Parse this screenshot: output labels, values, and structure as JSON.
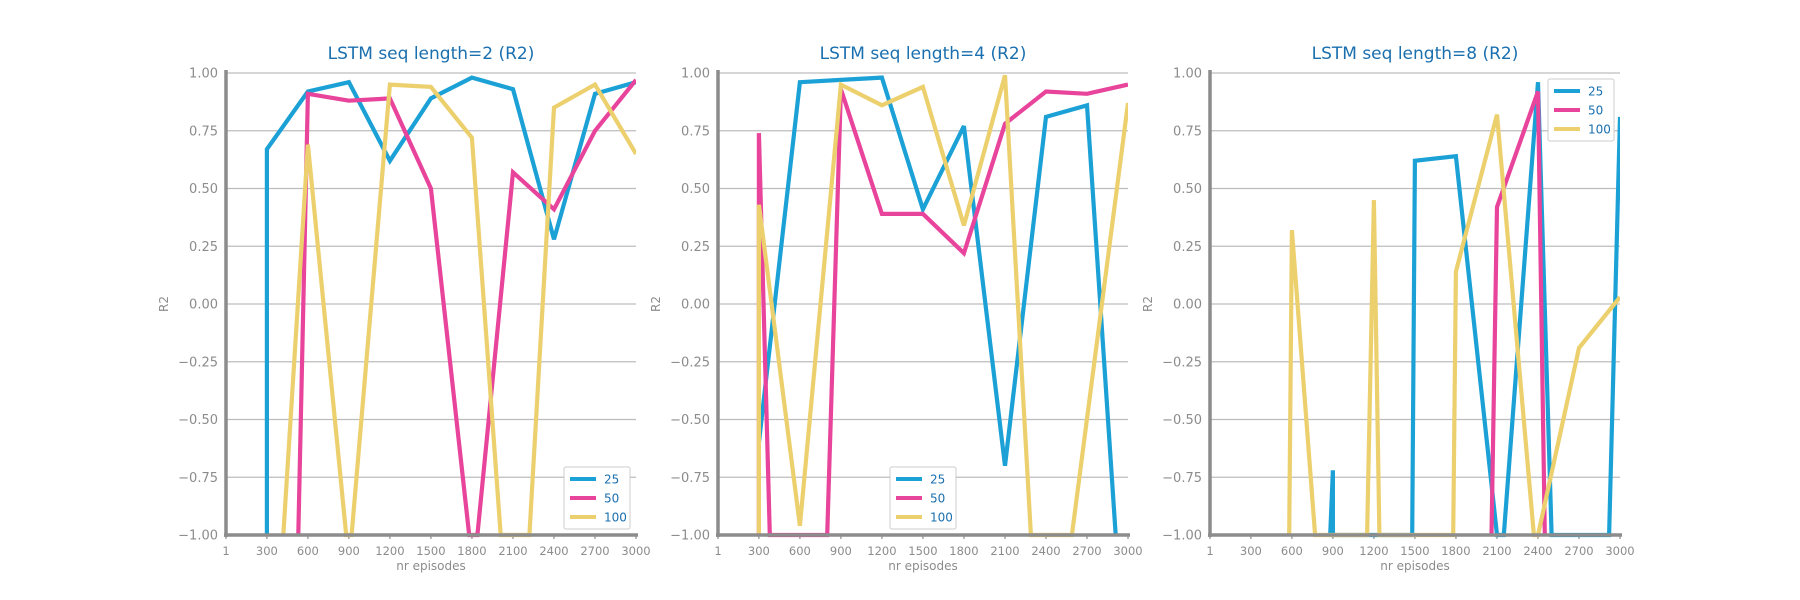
{
  "chart_data": [
    {
      "type": "line",
      "title": "LSTM seq length=2 (R2)",
      "xlabel": "nr episodes",
      "ylabel": "R2",
      "xlim": [
        1,
        3000
      ],
      "ylim": [
        -1,
        1
      ],
      "x_ticks": [
        "1",
        "300",
        "600",
        "900",
        "1200",
        "1500",
        "1800",
        "2100",
        "2400",
        "2700",
        "3000"
      ],
      "y_ticks": [
        "1.00",
        "0.75",
        "0.50",
        "0.25",
        "0.00",
        "−0.25",
        "−0.50",
        "−0.75",
        "−1.00"
      ],
      "legend_position": "bottom-right",
      "grid": true,
      "series": [
        {
          "name": "25",
          "color": "#1ba1d6",
          "points": [
            [
              300,
              -1.0
            ],
            [
              300,
              0.67
            ],
            [
              600,
              0.92
            ],
            [
              900,
              0.96
            ],
            [
              1200,
              0.62
            ],
            [
              1500,
              0.89
            ],
            [
              1800,
              0.98
            ],
            [
              2100,
              0.93
            ],
            [
              2400,
              0.28
            ],
            [
              2700,
              0.91
            ],
            [
              3000,
              0.96
            ]
          ]
        },
        {
          "name": "50",
          "color": "#e8449b",
          "points": [
            [
              530,
              -1.0
            ],
            [
              600,
              0.91
            ],
            [
              900,
              0.88
            ],
            [
              1200,
              0.89
            ],
            [
              1500,
              0.5
            ],
            [
              1780,
              -1.0
            ],
            [
              1840,
              -1.0
            ],
            [
              2100,
              0.57
            ],
            [
              2400,
              0.41
            ],
            [
              2700,
              0.75
            ],
            [
              3000,
              0.97
            ]
          ]
        },
        {
          "name": "100",
          "color": "#ecd06e",
          "points": [
            [
              420,
              -1.0
            ],
            [
              600,
              0.69
            ],
            [
              880,
              -1.0
            ],
            [
              920,
              -1.0
            ],
            [
              1200,
              0.95
            ],
            [
              1500,
              0.94
            ],
            [
              1800,
              0.72
            ],
            [
              2010,
              -1.0
            ],
            [
              2220,
              -1.0
            ],
            [
              2400,
              0.85
            ],
            [
              2700,
              0.95
            ],
            [
              3000,
              0.65
            ]
          ]
        }
      ]
    },
    {
      "type": "line",
      "title": "LSTM seq length=4 (R2)",
      "xlabel": "nr episodes",
      "ylabel": "R2",
      "xlim": [
        1,
        3000
      ],
      "ylim": [
        -1,
        1
      ],
      "x_ticks": [
        "1",
        "300",
        "600",
        "900",
        "1200",
        "1500",
        "1800",
        "2100",
        "2400",
        "2700",
        "3000"
      ],
      "y_ticks": [
        "1.00",
        "0.75",
        "0.50",
        "0.25",
        "0.00",
        "−0.25",
        "−0.50",
        "−0.75",
        "−1.00"
      ],
      "legend_position": "bottom-center",
      "grid": true,
      "series": [
        {
          "name": "25",
          "color": "#1ba1d6",
          "points": [
            [
              300,
              -0.6
            ],
            [
              600,
              0.96
            ],
            [
              900,
              0.97
            ],
            [
              1200,
              0.98
            ],
            [
              1500,
              0.41
            ],
            [
              1800,
              0.77
            ],
            [
              2100,
              -0.7
            ],
            [
              2400,
              0.81
            ],
            [
              2700,
              0.86
            ],
            [
              2910,
              -1.0
            ]
          ]
        },
        {
          "name": "50",
          "color": "#e8449b",
          "points": [
            [
              300,
              -1.0
            ],
            [
              300,
              0.74
            ],
            [
              380,
              -1.0
            ],
            [
              800,
              -1.0
            ],
            [
              900,
              0.93
            ],
            [
              1200,
              0.39
            ],
            [
              1500,
              0.39
            ],
            [
              1800,
              0.22
            ],
            [
              2100,
              0.78
            ],
            [
              2400,
              0.92
            ],
            [
              2700,
              0.91
            ],
            [
              3000,
              0.95
            ]
          ]
        },
        {
          "name": "100",
          "color": "#ecd06e",
          "points": [
            [
              300,
              -1.0
            ],
            [
              300,
              0.43
            ],
            [
              600,
              -0.96
            ],
            [
              900,
              0.95
            ],
            [
              1200,
              0.86
            ],
            [
              1500,
              0.94
            ],
            [
              1800,
              0.34
            ],
            [
              2100,
              0.99
            ],
            [
              2290,
              -1.0
            ],
            [
              2590,
              -1.0
            ],
            [
              3000,
              0.87
            ]
          ]
        }
      ]
    },
    {
      "type": "line",
      "title": "LSTM seq length=8 (R2)",
      "xlabel": "nr episodes",
      "ylabel": "R2",
      "xlim": [
        1,
        3000
      ],
      "ylim": [
        -1,
        1
      ],
      "x_ticks": [
        "1",
        "300",
        "600",
        "900",
        "1200",
        "1500",
        "1800",
        "2100",
        "2400",
        "2700",
        "3000"
      ],
      "y_ticks": [
        "1.00",
        "0.75",
        "0.50",
        "0.25",
        "0.00",
        "−0.25",
        "−0.50",
        "−0.75",
        "−1.00"
      ],
      "legend_position": "top-right",
      "grid": true,
      "series": [
        {
          "name": "25",
          "color": "#1ba1d6",
          "points": [
            [
              880,
              -1.0
            ],
            [
              900,
              -0.72
            ],
            [
              900,
              -1.0
            ],
            [
              1480,
              -1.0
            ],
            [
              1500,
              0.62
            ],
            [
              1800,
              0.64
            ],
            [
              2100,
              -1.0
            ],
            [
              2150,
              -1.0
            ],
            [
              2400,
              0.96
            ],
            [
              2500,
              -1.0
            ],
            [
              2920,
              -1.0
            ],
            [
              3000,
              0.81
            ]
          ]
        },
        {
          "name": "50",
          "color": "#e8449b",
          "points": [
            [
              2060,
              -1.0
            ],
            [
              2100,
              0.42
            ],
            [
              2400,
              0.92
            ],
            [
              2450,
              -1.0
            ]
          ]
        },
        {
          "name": "100",
          "color": "#ecd06e",
          "points": [
            [
              580,
              -1.0
            ],
            [
              600,
              0.32
            ],
            [
              770,
              -1.0
            ],
            [
              1150,
              -1.0
            ],
            [
              1200,
              0.45
            ],
            [
              1240,
              -1.0
            ],
            [
              1780,
              -1.0
            ],
            [
              1800,
              0.14
            ],
            [
              2100,
              0.82
            ],
            [
              2370,
              -1.0
            ],
            [
              2400,
              -1.0
            ],
            [
              2700,
              -0.19
            ],
            [
              3000,
              0.03
            ]
          ]
        }
      ]
    }
  ]
}
